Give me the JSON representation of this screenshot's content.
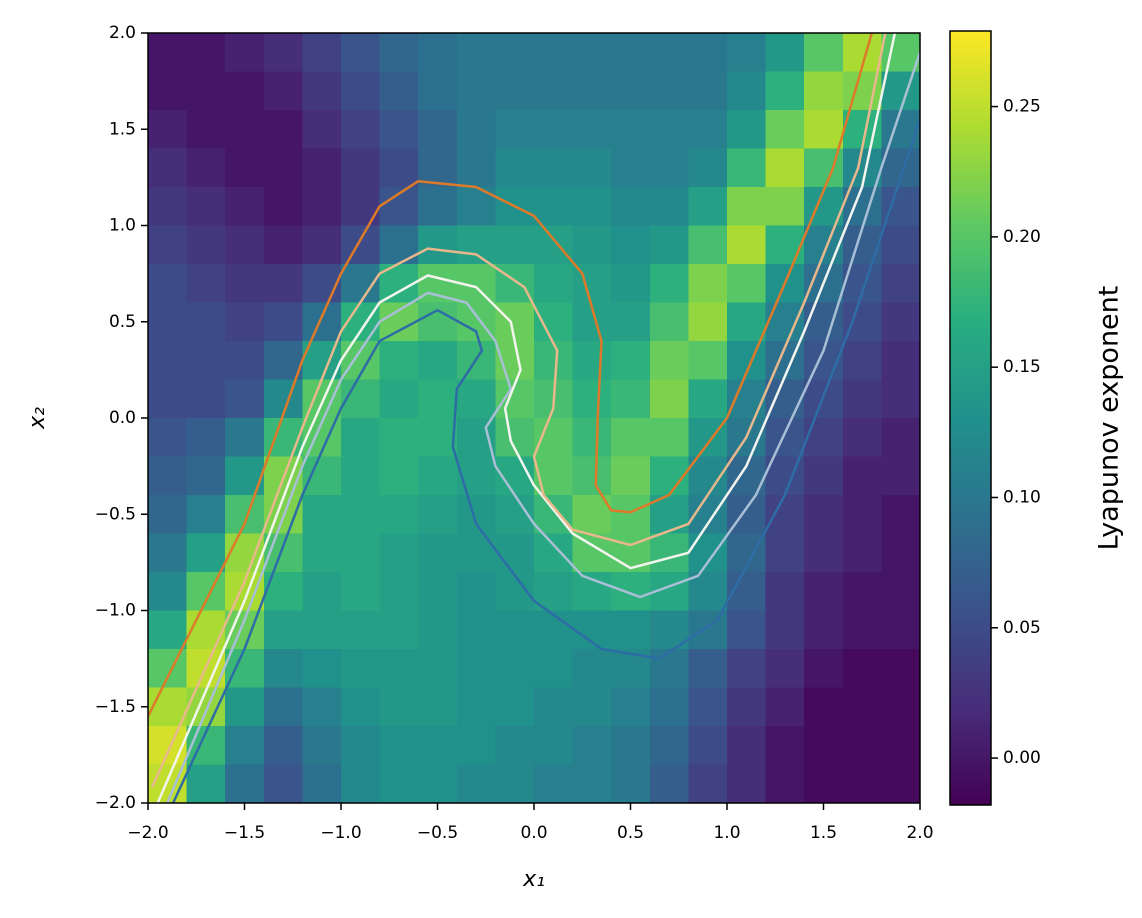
{
  "chart_data": {
    "type": "heatmap",
    "colormap": "viridis",
    "xlabel": "x₁",
    "ylabel": "x₂",
    "colorbar_label": "Lyapunov exponent",
    "xlim": [
      -2.0,
      2.0
    ],
    "ylim": [
      -2.0,
      2.0
    ],
    "clim": [
      -0.018,
      0.279
    ],
    "xticks": [
      {
        "value": -2.0,
        "label": "−2.0"
      },
      {
        "value": -1.5,
        "label": "−1.5"
      },
      {
        "value": -1.0,
        "label": "−1.0"
      },
      {
        "value": -0.5,
        "label": "−0.5"
      },
      {
        "value": 0.0,
        "label": "0.0"
      },
      {
        "value": 0.5,
        "label": "0.5"
      },
      {
        "value": 1.0,
        "label": "1.0"
      },
      {
        "value": 1.5,
        "label": "1.5"
      },
      {
        "value": 2.0,
        "label": "2.0"
      }
    ],
    "yticks": [
      {
        "value": -2.0,
        "label": "−2.0"
      },
      {
        "value": -1.5,
        "label": "−1.5"
      },
      {
        "value": -1.0,
        "label": "−1.0"
      },
      {
        "value": -0.5,
        "label": "−0.5"
      },
      {
        "value": 0.0,
        "label": "0.0"
      },
      {
        "value": 0.5,
        "label": "0.5"
      },
      {
        "value": 1.0,
        "label": "1.0"
      },
      {
        "value": 1.5,
        "label": "1.5"
      },
      {
        "value": 2.0,
        "label": "2.0"
      }
    ],
    "cticks": [
      {
        "value": 0.0,
        "label": "0.00"
      },
      {
        "value": 0.05,
        "label": "0.05"
      },
      {
        "value": 0.1,
        "label": "0.10"
      },
      {
        "value": 0.15,
        "label": "0.15"
      },
      {
        "value": 0.2,
        "label": "0.20"
      },
      {
        "value": 0.25,
        "label": "0.25"
      }
    ],
    "x": [
      -1.9,
      -1.7,
      -1.5,
      -1.3,
      -1.1,
      -0.9,
      -0.7,
      -0.5,
      -0.3,
      -0.1,
      0.1,
      0.3,
      0.5,
      0.7,
      0.9,
      1.1,
      1.3,
      1.5,
      1.7,
      1.9
    ],
    "y": [
      1.9,
      1.7,
      1.5,
      1.3,
      1.1,
      0.9,
      0.7,
      0.5,
      0.3,
      0.1,
      -0.1,
      -0.3,
      -0.5,
      -0.7,
      -0.9,
      -1.1,
      -1.3,
      -1.5,
      -1.7,
      -1.9
    ],
    "z": [
      [
        0.0,
        0.0,
        0.01,
        0.02,
        0.04,
        0.06,
        0.08,
        0.09,
        0.1,
        0.1,
        0.1,
        0.1,
        0.1,
        0.1,
        0.1,
        0.11,
        0.14,
        0.2,
        0.24,
        0.2
      ],
      [
        0.0,
        0.0,
        0.0,
        0.01,
        0.03,
        0.05,
        0.07,
        0.09,
        0.1,
        0.1,
        0.1,
        0.1,
        0.1,
        0.1,
        0.1,
        0.12,
        0.17,
        0.23,
        0.22,
        0.14
      ],
      [
        0.01,
        0.0,
        0.0,
        0.0,
        0.02,
        0.04,
        0.06,
        0.08,
        0.1,
        0.11,
        0.11,
        0.11,
        0.11,
        0.11,
        0.11,
        0.14,
        0.21,
        0.24,
        0.17,
        0.1
      ],
      [
        0.02,
        0.01,
        0.0,
        0.0,
        0.01,
        0.03,
        0.05,
        0.08,
        0.1,
        0.12,
        0.12,
        0.12,
        0.11,
        0.11,
        0.12,
        0.18,
        0.24,
        0.19,
        0.12,
        0.08
      ],
      [
        0.03,
        0.02,
        0.01,
        0.0,
        0.01,
        0.03,
        0.06,
        0.09,
        0.11,
        0.13,
        0.13,
        0.13,
        0.12,
        0.12,
        0.15,
        0.22,
        0.22,
        0.14,
        0.09,
        0.06
      ],
      [
        0.04,
        0.03,
        0.02,
        0.01,
        0.02,
        0.05,
        0.09,
        0.14,
        0.15,
        0.15,
        0.15,
        0.14,
        0.13,
        0.14,
        0.19,
        0.24,
        0.17,
        0.11,
        0.07,
        0.05
      ],
      [
        0.05,
        0.04,
        0.03,
        0.03,
        0.05,
        0.1,
        0.17,
        0.2,
        0.2,
        0.18,
        0.16,
        0.15,
        0.14,
        0.17,
        0.22,
        0.2,
        0.13,
        0.09,
        0.06,
        0.04
      ],
      [
        0.05,
        0.05,
        0.04,
        0.05,
        0.09,
        0.17,
        0.21,
        0.19,
        0.2,
        0.21,
        0.17,
        0.15,
        0.15,
        0.19,
        0.23,
        0.16,
        0.11,
        0.07,
        0.05,
        0.03
      ],
      [
        0.05,
        0.05,
        0.05,
        0.08,
        0.15,
        0.2,
        0.17,
        0.16,
        0.18,
        0.21,
        0.18,
        0.16,
        0.17,
        0.21,
        0.2,
        0.13,
        0.09,
        0.06,
        0.04,
        0.02
      ],
      [
        0.05,
        0.05,
        0.06,
        0.12,
        0.2,
        0.18,
        0.16,
        0.17,
        0.16,
        0.2,
        0.19,
        0.17,
        0.18,
        0.22,
        0.16,
        0.11,
        0.07,
        0.05,
        0.03,
        0.02
      ],
      [
        0.06,
        0.07,
        0.1,
        0.18,
        0.2,
        0.16,
        0.17,
        0.17,
        0.15,
        0.19,
        0.2,
        0.18,
        0.2,
        0.2,
        0.14,
        0.1,
        0.06,
        0.04,
        0.02,
        0.01
      ],
      [
        0.07,
        0.08,
        0.14,
        0.22,
        0.18,
        0.16,
        0.17,
        0.16,
        0.15,
        0.16,
        0.2,
        0.19,
        0.21,
        0.17,
        0.12,
        0.08,
        0.05,
        0.03,
        0.01,
        0.01
      ],
      [
        0.08,
        0.11,
        0.19,
        0.22,
        0.16,
        0.16,
        0.16,
        0.15,
        0.14,
        0.15,
        0.18,
        0.21,
        0.2,
        0.15,
        0.11,
        0.07,
        0.04,
        0.02,
        0.01,
        0.0
      ],
      [
        0.1,
        0.15,
        0.23,
        0.19,
        0.16,
        0.16,
        0.15,
        0.14,
        0.14,
        0.14,
        0.16,
        0.2,
        0.2,
        0.18,
        0.13,
        0.08,
        0.04,
        0.02,
        0.01,
        0.0
      ],
      [
        0.12,
        0.2,
        0.24,
        0.17,
        0.15,
        0.16,
        0.15,
        0.14,
        0.13,
        0.14,
        0.15,
        0.16,
        0.17,
        0.16,
        0.12,
        0.07,
        0.03,
        0.01,
        0.0,
        0.0
      ],
      [
        0.16,
        0.24,
        0.21,
        0.15,
        0.15,
        0.15,
        0.15,
        0.14,
        0.13,
        0.13,
        0.13,
        0.13,
        0.13,
        0.12,
        0.1,
        0.06,
        0.03,
        0.01,
        0.0,
        0.0
      ],
      [
        0.2,
        0.25,
        0.18,
        0.12,
        0.13,
        0.14,
        0.14,
        0.14,
        0.13,
        0.13,
        0.13,
        0.12,
        0.12,
        0.1,
        0.07,
        0.04,
        0.02,
        0.0,
        -0.01,
        -0.01
      ],
      [
        0.24,
        0.23,
        0.14,
        0.09,
        0.11,
        0.13,
        0.14,
        0.14,
        0.13,
        0.13,
        0.12,
        0.12,
        0.11,
        0.09,
        0.06,
        0.03,
        0.01,
        -0.01,
        -0.01,
        -0.01
      ],
      [
        0.26,
        0.18,
        0.11,
        0.07,
        0.1,
        0.12,
        0.13,
        0.13,
        0.13,
        0.12,
        0.12,
        0.11,
        0.1,
        0.08,
        0.05,
        0.02,
        0.0,
        -0.01,
        -0.01,
        -0.01
      ],
      [
        0.25,
        0.15,
        0.09,
        0.06,
        0.09,
        0.12,
        0.13,
        0.13,
        0.12,
        0.12,
        0.11,
        0.11,
        0.1,
        0.07,
        0.04,
        0.02,
        0.0,
        -0.01,
        -0.01,
        -0.01
      ]
    ],
    "contours": [
      {
        "color": "#2e6ca6",
        "x": [
          -1.87,
          -1.5,
          -1.2,
          -1.0,
          -0.8,
          -0.5,
          -0.3,
          -0.27,
          -0.4,
          -0.42,
          -0.3,
          0.0,
          0.35,
          0.65,
          0.95,
          1.3,
          1.65,
          2.0
        ],
        "y": [
          -2.0,
          -1.2,
          -0.4,
          0.05,
          0.4,
          0.56,
          0.45,
          0.35,
          0.15,
          -0.15,
          -0.55,
          -0.95,
          -1.2,
          -1.25,
          -1.05,
          -0.4,
          0.5,
          1.55
        ]
      },
      {
        "color": "#a9bfd6",
        "x": [
          -1.9,
          -1.5,
          -1.2,
          -1.0,
          -0.8,
          -0.55,
          -0.35,
          -0.2,
          -0.12,
          -0.25,
          -0.2,
          0.0,
          0.25,
          0.55,
          0.85,
          1.15,
          1.5,
          1.8,
          2.0
        ],
        "y": [
          -2.0,
          -1.05,
          -0.25,
          0.2,
          0.5,
          0.65,
          0.6,
          0.4,
          0.15,
          -0.05,
          -0.25,
          -0.55,
          -0.82,
          -0.93,
          -0.82,
          -0.4,
          0.35,
          1.3,
          1.9
        ]
      },
      {
        "color": "#f4f4ee",
        "x": [
          -1.95,
          -1.5,
          -1.2,
          -1.0,
          -0.8,
          -0.55,
          -0.3,
          -0.12,
          -0.07,
          -0.15,
          -0.12,
          0.0,
          0.2,
          0.5,
          0.8,
          1.1,
          1.4,
          1.7,
          1.87
        ],
        "y": [
          -2.0,
          -0.95,
          -0.15,
          0.3,
          0.6,
          0.74,
          0.68,
          0.5,
          0.25,
          0.05,
          -0.12,
          -0.35,
          -0.6,
          -0.78,
          -0.7,
          -0.25,
          0.45,
          1.2,
          2.0
        ]
      },
      {
        "color": "#e8b88c",
        "x": [
          -1.98,
          -1.5,
          -1.2,
          -1.0,
          -0.8,
          -0.55,
          -0.3,
          -0.05,
          0.12,
          0.1,
          0.0,
          0.05,
          0.2,
          0.5,
          0.8,
          1.1,
          1.4,
          1.68,
          1.82
        ],
        "y": [
          -1.92,
          -0.85,
          -0.05,
          0.45,
          0.75,
          0.88,
          0.85,
          0.68,
          0.35,
          0.05,
          -0.2,
          -0.4,
          -0.58,
          -0.66,
          -0.55,
          -0.1,
          0.6,
          1.3,
          2.0
        ]
      },
      {
        "color": "#dd7a2a",
        "x": [
          -2.0,
          -1.5,
          -1.2,
          -1.0,
          -0.8,
          -0.6,
          -0.3,
          0.0,
          0.25,
          0.35,
          0.33,
          0.32,
          0.4,
          0.5,
          0.7,
          1.0,
          1.3,
          1.55,
          1.75
        ],
        "y": [
          -1.55,
          -0.55,
          0.3,
          0.75,
          1.1,
          1.23,
          1.2,
          1.05,
          0.75,
          0.4,
          0.0,
          -0.35,
          -0.48,
          -0.49,
          -0.4,
          0.0,
          0.7,
          1.3,
          2.0
        ]
      }
    ]
  }
}
